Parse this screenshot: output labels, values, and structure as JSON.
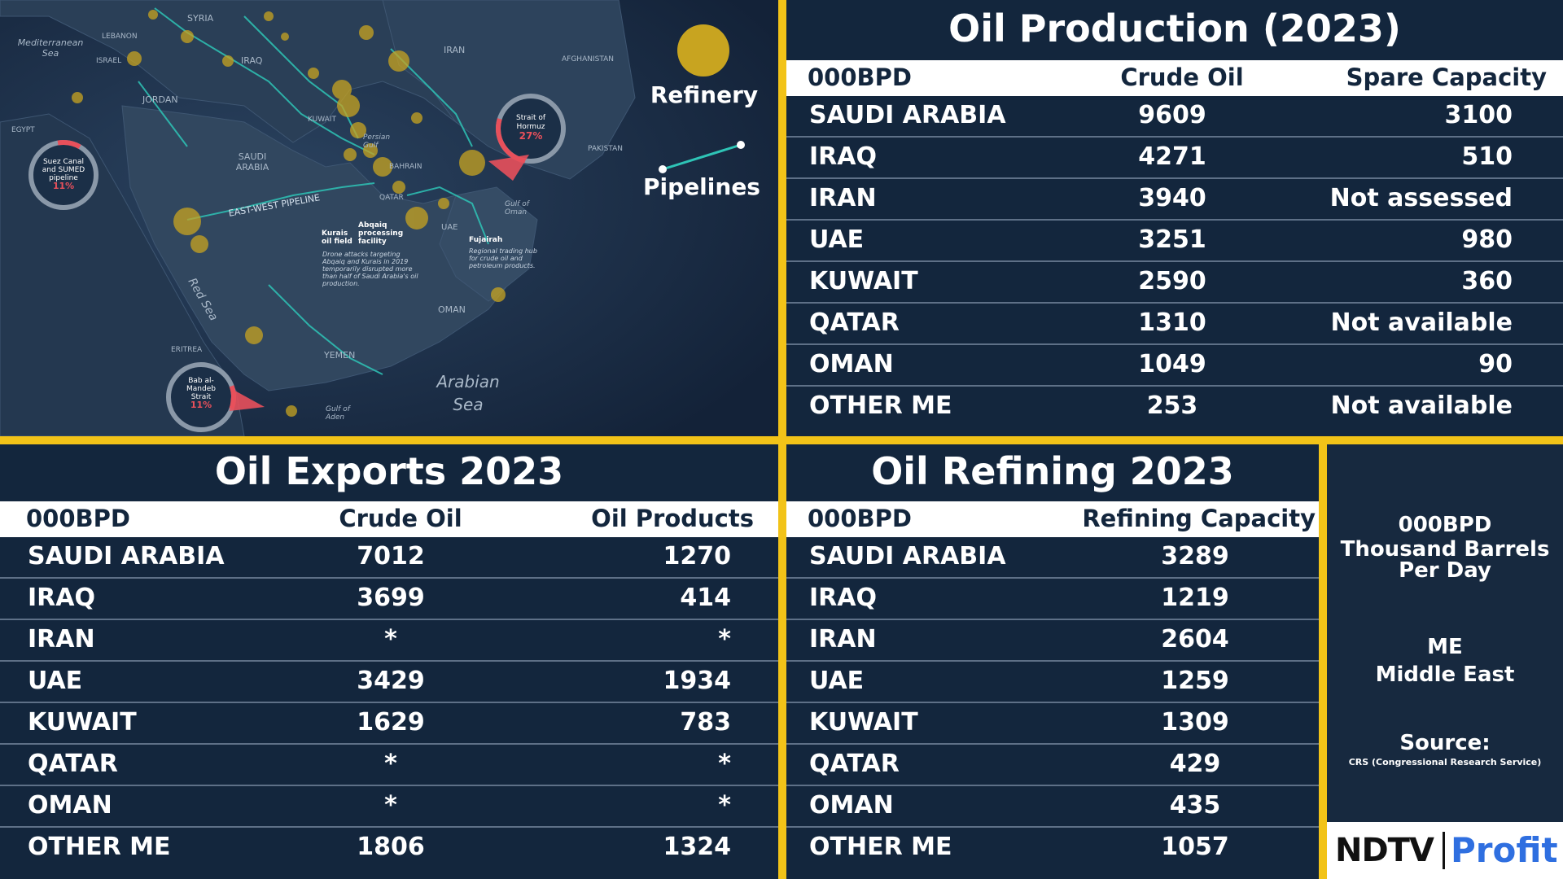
{
  "map": {
    "labels": {
      "syria": "SYRIA",
      "iran": "IRAN",
      "iraq": "IRAQ",
      "lebanon": "LEBANON",
      "israel": "ISRAEL",
      "jordan": "JORDAN",
      "kuwait": "KUWAIT",
      "saudi": "SAUDI ARABIA",
      "bahrain": "BAHRAIN",
      "qatar": "QATAR",
      "uae": "UAE",
      "oman": "OMAN",
      "yemen": "YEMEN",
      "egypt": "EGYPT",
      "eritrea": "ERITREA",
      "afghanistan": "AFGHANISTAN",
      "pakistan": "PAKISTAN",
      "mediterranean": "Mediterranean Sea",
      "red_sea": "Red Sea",
      "arabian_sea": "Arabian Sea",
      "persian_gulf": "Persian Gulf",
      "gulf_of_oman": "Gulf of Oman",
      "gulf_of_aden": "Gulf of Aden",
      "east_west": "EAST-WEST PIPELINE",
      "kurais": "Kurais oil field",
      "abqaiq": "Abqaiq processing facility",
      "drone_note": "Drone attacks targeting Abqaiq and Kurais in 2019 temporarily disrupted more than half of Saudi Arabia's oil production.",
      "fujairah": "Fujairah",
      "fujairah_note": "Regional trading hub for crude oil and petroleum products."
    },
    "callouts": {
      "suez": {
        "label": "Suez Canal and SUMED pipeline",
        "percent": "11%",
        "share": 0.11
      },
      "hormuz": {
        "label": "Strait of Hormuz",
        "percent": "27%",
        "share": 0.27
      },
      "bab": {
        "label": "Bab al-Mandeb Strait",
        "percent": "11%",
        "share": 0.11
      }
    },
    "legend": {
      "refinery": "Refinery",
      "pipelines": "Pipelines"
    },
    "colors": {
      "refinery": "#c8a420",
      "pipeline": "#2ec4b6",
      "accent": "#e8505b"
    }
  },
  "production": {
    "title": "Oil Production (2023)",
    "headers": [
      "000BPD",
      "Crude Oil",
      "Spare Capacity"
    ],
    "rows": [
      [
        "SAUDI ARABIA",
        "9609",
        "3100"
      ],
      [
        "IRAQ",
        "4271",
        "510"
      ],
      [
        "IRAN",
        "3940",
        "Not assessed"
      ],
      [
        "UAE",
        "3251",
        "980"
      ],
      [
        "KUWAIT",
        "2590",
        "360"
      ],
      [
        "QATAR",
        "1310",
        "Not available"
      ],
      [
        "OMAN",
        "1049",
        "90"
      ],
      [
        "OTHER ME",
        "253",
        "Not available"
      ]
    ]
  },
  "exports": {
    "title": "Oil Exports 2023",
    "headers": [
      "000BPD",
      "Crude Oil",
      "Oil Products"
    ],
    "rows": [
      [
        "SAUDI ARABIA",
        "7012",
        "1270"
      ],
      [
        "IRAQ",
        "3699",
        "414"
      ],
      [
        "IRAN",
        "*",
        "*"
      ],
      [
        "UAE",
        "3429",
        "1934"
      ],
      [
        "KUWAIT",
        "1629",
        "783"
      ],
      [
        "QATAR",
        "*",
        "*"
      ],
      [
        "OMAN",
        "*",
        "*"
      ],
      [
        "OTHER ME",
        "1806",
        "1324"
      ]
    ]
  },
  "refining": {
    "title": "Oil Refining 2023",
    "headers": [
      "000BPD",
      "Refining Capacity"
    ],
    "rows": [
      [
        "SAUDI ARABIA",
        "3289"
      ],
      [
        "IRAQ",
        "1219"
      ],
      [
        "IRAN",
        "2604"
      ],
      [
        "UAE",
        "1259"
      ],
      [
        "KUWAIT",
        "1309"
      ],
      [
        "QATAR",
        "429"
      ],
      [
        "OMAN",
        "435"
      ],
      [
        "OTHER ME",
        "1057"
      ]
    ]
  },
  "legend_panel": {
    "bpd_abbr": "000BPD",
    "bpd_full_1": "Thousand Barrels",
    "bpd_full_2": "Per Day",
    "me_abbr": "ME",
    "me_full": "Middle East",
    "source_label": "Source:",
    "source_text": "CRS (Congressional Research Service)"
  },
  "branding": {
    "ndtv": "NDTV",
    "profit": "Profit",
    "ndtv_color": "#111111",
    "profit_color": "#2f6fe0"
  },
  "chart_data": [
    {
      "type": "table",
      "title": "Oil Production (2023)",
      "columns": [
        "000BPD",
        "Crude Oil",
        "Spare Capacity"
      ],
      "rows": [
        [
          "SAUDI ARABIA",
          9609,
          3100
        ],
        [
          "IRAQ",
          4271,
          510
        ],
        [
          "IRAN",
          3940,
          "Not assessed"
        ],
        [
          "UAE",
          3251,
          980
        ],
        [
          "KUWAIT",
          2590,
          360
        ],
        [
          "QATAR",
          1310,
          "Not available"
        ],
        [
          "OMAN",
          1049,
          90
        ],
        [
          "OTHER ME",
          253,
          "Not available"
        ]
      ]
    },
    {
      "type": "table",
      "title": "Oil Exports 2023",
      "columns": [
        "000BPD",
        "Crude Oil",
        "Oil Products"
      ],
      "rows": [
        [
          "SAUDI ARABIA",
          7012,
          1270
        ],
        [
          "IRAQ",
          3699,
          414
        ],
        [
          "IRAN",
          "*",
          "*"
        ],
        [
          "UAE",
          3429,
          1934
        ],
        [
          "KUWAIT",
          1629,
          783
        ],
        [
          "QATAR",
          "*",
          "*"
        ],
        [
          "OMAN",
          "*",
          "*"
        ],
        [
          "OTHER ME",
          1806,
          1324
        ]
      ]
    },
    {
      "type": "table",
      "title": "Oil Refining 2023",
      "columns": [
        "000BPD",
        "Refining Capacity"
      ],
      "rows": [
        [
          "SAUDI ARABIA",
          3289
        ],
        [
          "IRAQ",
          1219
        ],
        [
          "IRAN",
          2604
        ],
        [
          "UAE",
          1259
        ],
        [
          "KUWAIT",
          1309
        ],
        [
          "QATAR",
          429
        ],
        [
          "OMAN",
          435
        ],
        [
          "OTHER ME",
          1057
        ]
      ]
    }
  ]
}
